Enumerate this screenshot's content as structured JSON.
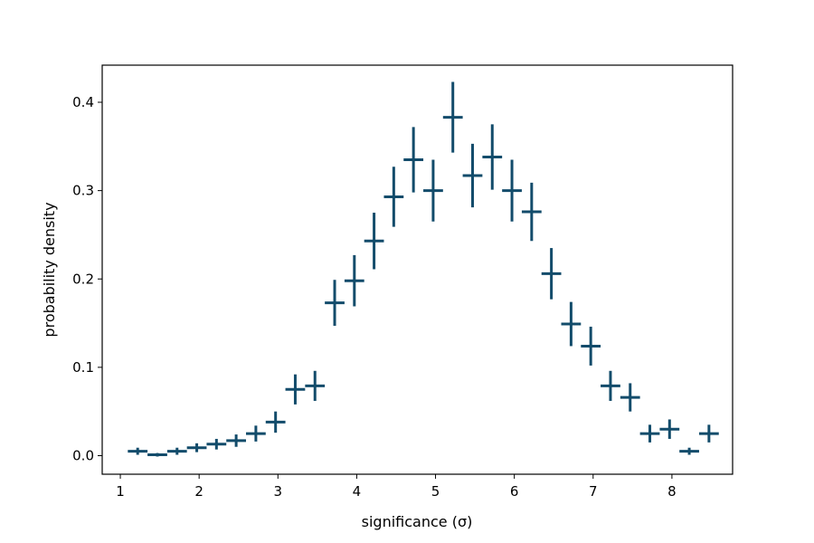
{
  "chart_data": {
    "type": "scatter",
    "title": "",
    "xlabel": "significance (σ)",
    "ylabel": "probability density",
    "xlim": [
      0.77,
      8.77
    ],
    "ylim": [
      -0.021,
      0.442
    ],
    "xticks": [
      1,
      2,
      3,
      4,
      5,
      6,
      7,
      8
    ],
    "xtick_labels": [
      "1",
      "2",
      "3",
      "4",
      "5",
      "6",
      "7",
      "8"
    ],
    "yticks": [
      0.0,
      0.1,
      0.2,
      0.3,
      0.4
    ],
    "ytick_labels": [
      "0.0",
      "0.1",
      "0.2",
      "0.3",
      "0.4"
    ],
    "grid": false,
    "legend": "none",
    "bin_width": 0.25,
    "color": "#134c6b",
    "series": [
      {
        "style": "errorbar",
        "x": [
          1.22,
          1.47,
          1.72,
          1.97,
          2.22,
          2.47,
          2.72,
          2.97,
          3.22,
          3.47,
          3.72,
          3.97,
          4.22,
          4.47,
          4.72,
          4.97,
          5.22,
          5.47,
          5.72,
          5.97,
          6.22,
          6.47,
          6.72,
          6.97,
          7.22,
          7.47,
          7.72,
          7.97,
          8.22,
          8.47
        ],
        "y": [
          0.005,
          0.001,
          0.005,
          0.009,
          0.013,
          0.017,
          0.025,
          0.038,
          0.075,
          0.079,
          0.173,
          0.198,
          0.243,
          0.293,
          0.335,
          0.3,
          0.383,
          0.317,
          0.338,
          0.3,
          0.276,
          0.206,
          0.149,
          0.124,
          0.079,
          0.066,
          0.025,
          0.03,
          0.005,
          0.025
        ],
        "yerr": [
          0.004,
          0.002,
          0.004,
          0.005,
          0.006,
          0.007,
          0.009,
          0.012,
          0.017,
          0.017,
          0.026,
          0.029,
          0.032,
          0.034,
          0.037,
          0.035,
          0.04,
          0.036,
          0.037,
          0.035,
          0.033,
          0.029,
          0.025,
          0.022,
          0.017,
          0.016,
          0.01,
          0.011,
          0.004,
          0.01
        ]
      }
    ]
  }
}
